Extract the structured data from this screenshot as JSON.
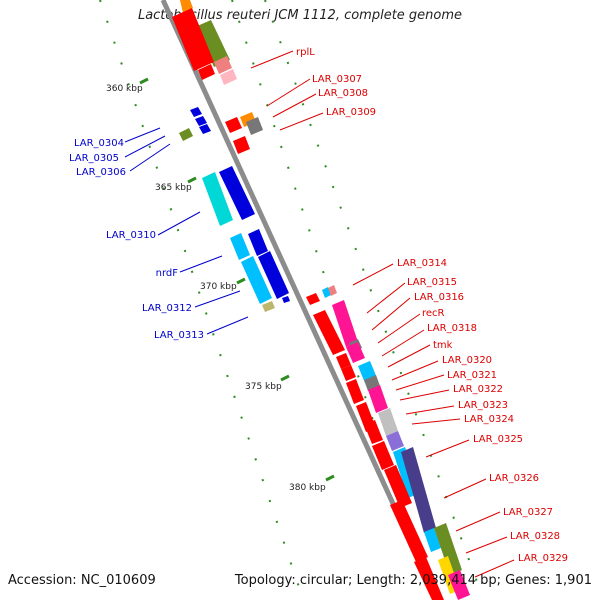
{
  "title": "Lactobacillus reuteri JCM 1112, complete genome",
  "footer": {
    "accession": "Accession: NC_010609",
    "summary": "Topology: circular; Length: 2,039,414 bp; Genes: 1,901"
  },
  "colors": {
    "backbone": "#8c8c8c",
    "tick": "#2e8b20",
    "forward_label": "#0000cc",
    "reverse_label": "#dd0000"
  },
  "scale_labels": [
    "360 kbp",
    "365 kbp",
    "370 kbp",
    "375 kbp",
    "380 kbp"
  ],
  "forward_gene_labels": [
    "LAR_0304",
    "LAR_0305",
    "LAR_0306",
    "LAR_0310",
    "nrdF",
    "LAR_0312",
    "LAR_0313"
  ],
  "reverse_gene_labels": [
    "rplL",
    "LAR_0307",
    "LAR_0308",
    "LAR_0309",
    "LAR_0314",
    "LAR_0315",
    "LAR_0316",
    "recR",
    "LAR_0318",
    "tmk",
    "LAR_0320",
    "LAR_0321",
    "LAR_0322",
    "LAR_0323",
    "LAR_0324",
    "LAR_0325",
    "LAR_0326",
    "LAR_0327",
    "LAR_0328",
    "LAR_0329"
  ]
}
